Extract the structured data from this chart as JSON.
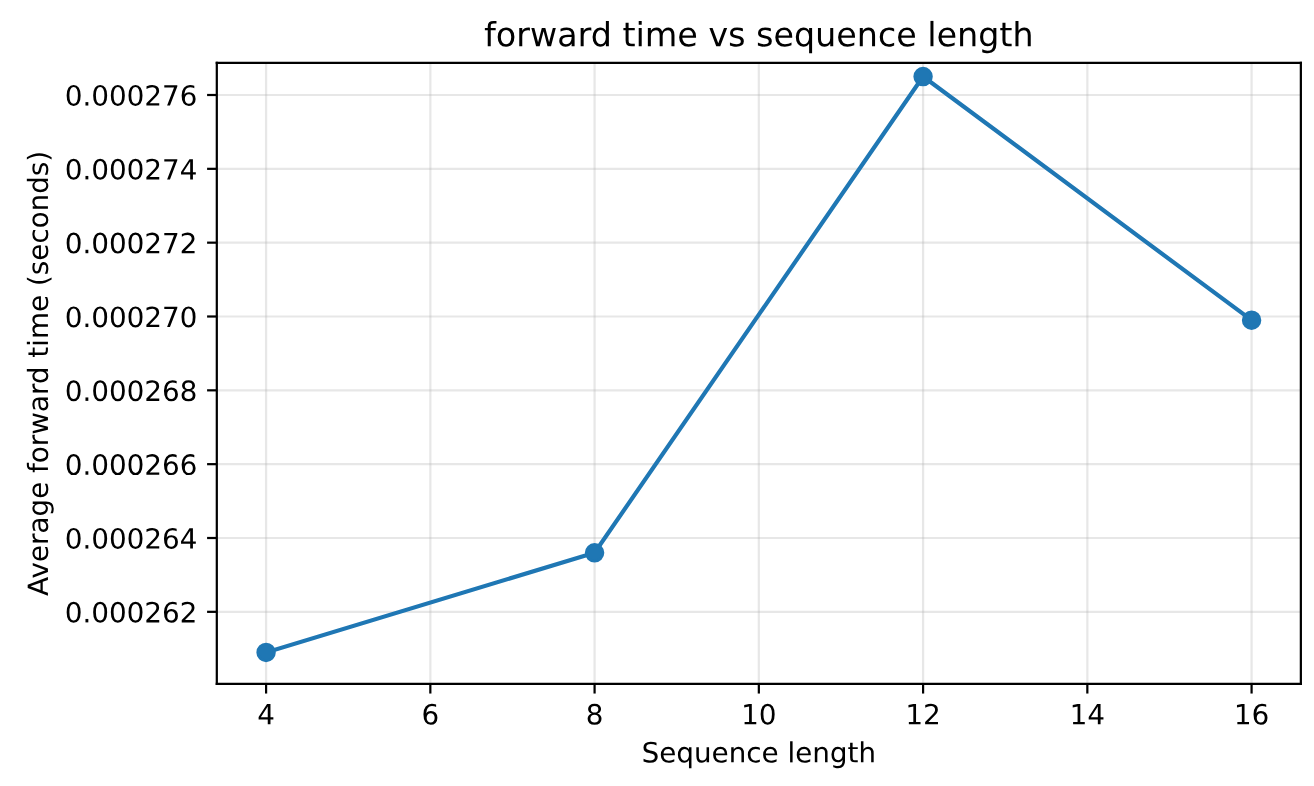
{
  "chart_data": {
    "type": "line",
    "title": "forward time vs sequence length",
    "xlabel": "Sequence length",
    "ylabel": "Average forward time (seconds)",
    "x": [
      4,
      8,
      12,
      16
    ],
    "series": [
      {
        "color": "#1f77b4",
        "values": [
          0.0002609,
          0.0002636,
          0.0002765,
          0.0002699
        ]
      }
    ],
    "xlim": [
      3.4,
      16.6
    ],
    "xticks": [
      4,
      6,
      8,
      10,
      12,
      14,
      16
    ],
    "ylim": [
      0.00026005,
      0.00027687
    ],
    "yticks": [
      {
        "value": 0.000262,
        "label": "0.000262"
      },
      {
        "value": 0.000264,
        "label": "0.000264"
      },
      {
        "value": 0.000266,
        "label": "0.000266"
      },
      {
        "value": 0.000268,
        "label": "0.000268"
      },
      {
        "value": 0.00027,
        "label": "0.000270"
      },
      {
        "value": 0.000272,
        "label": "0.000272"
      },
      {
        "value": 0.000274,
        "label": "0.000274"
      },
      {
        "value": 0.000276,
        "label": "0.000276"
      }
    ],
    "grid": true,
    "marker": "circle",
    "line_style": "solid"
  }
}
